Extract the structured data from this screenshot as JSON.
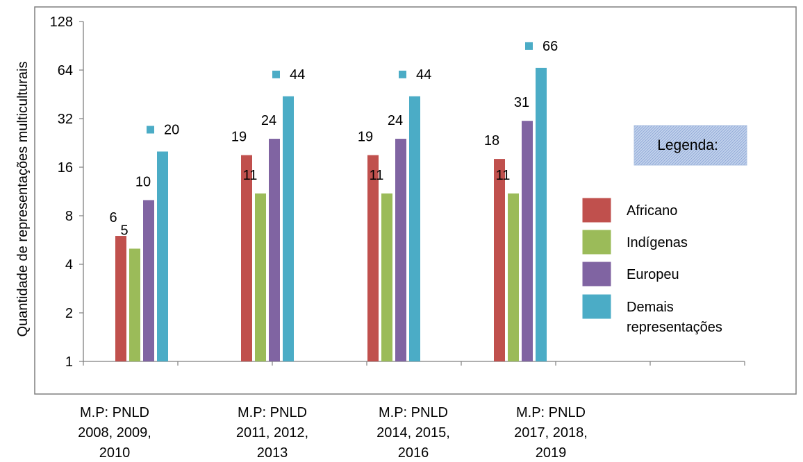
{
  "chart_data": {
    "type": "bar",
    "ylabel": "Quantidade de representações multiculturais",
    "yscale": "log2",
    "ylim": [
      1,
      128
    ],
    "yticks": [
      "1",
      "2",
      "4",
      "8",
      "16",
      "32",
      "64",
      "128"
    ],
    "categories": [
      [
        "M.P: PNLD",
        "2008, 2009,",
        "2010"
      ],
      [
        "M.P: PNLD",
        "2011, 2012,",
        "2013"
      ],
      [
        "M.P: PNLD",
        "2014, 2015,",
        "2016"
      ],
      [
        "M.P: PNLD",
        "2017, 2018,",
        "2019"
      ]
    ],
    "series": [
      {
        "name": "Africano",
        "color": "#c0504d",
        "values": [
          6,
          19,
          19,
          18
        ]
      },
      {
        "name": "Indígenas",
        "color": "#9bbb59",
        "values": [
          5,
          11,
          11,
          11
        ]
      },
      {
        "name": "Europeu",
        "color": "#8064a2",
        "values": [
          10,
          24,
          24,
          31
        ]
      },
      {
        "name": "Demais representações",
        "color": "#4bacc6",
        "values": [
          20,
          44,
          44,
          66
        ]
      }
    ],
    "legend": {
      "title": "Legenda:",
      "placement": "right",
      "labels": [
        [
          "Africano"
        ],
        [
          "Indígenas"
        ],
        [
          "Europeu"
        ],
        [
          "Demais",
          "representações"
        ]
      ]
    },
    "grid": false
  }
}
